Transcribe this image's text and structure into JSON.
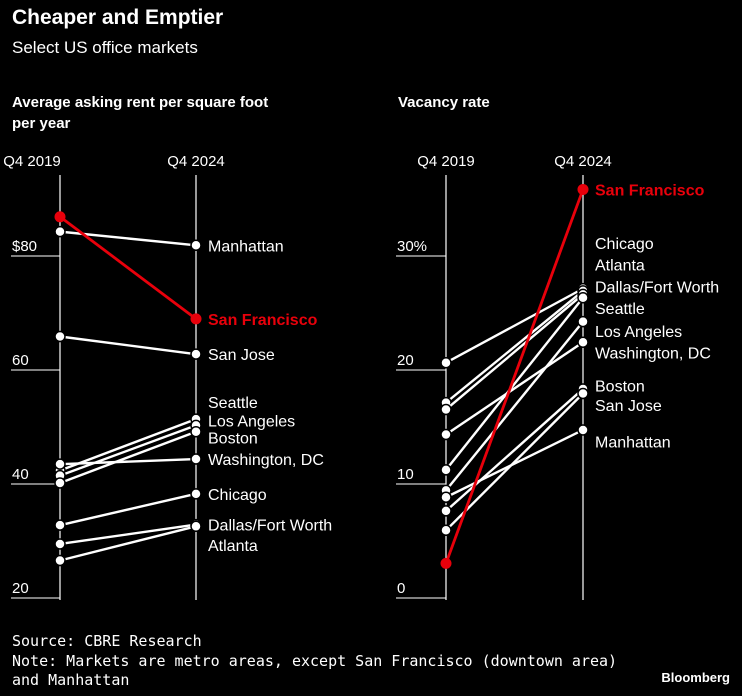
{
  "title": "Cheaper and Emptier",
  "subtitle": "Select US office markets",
  "source": "Source: CBRE Research",
  "note_line1": "Note: Markets are metro areas, except San Francisco (downtown area)",
  "note_line2": "and Manhattan",
  "brand": "Bloomberg",
  "colors": {
    "background": "#000000",
    "line": "#ffffff",
    "highlight": "#e8000b"
  },
  "chart_data": [
    {
      "type": "line",
      "title": "Average asking rent per square foot per year",
      "title_line1": "Average asking rent per square foot",
      "title_line2": "per year",
      "x": [
        "Q4 2019",
        "Q4 2024"
      ],
      "ylim": [
        20,
        88
      ],
      "yticks": [
        20,
        40,
        60,
        80
      ],
      "ytick_labels": [
        "20",
        "40",
        "60",
        "$80"
      ],
      "highlight": "San Francisco",
      "series": [
        {
          "name": "Manhattan",
          "values": [
            83.4,
            81.0
          ]
        },
        {
          "name": "San Francisco",
          "values": [
            86.0,
            68.1
          ]
        },
        {
          "name": "San Jose",
          "values": [
            65.0,
            61.9
          ]
        },
        {
          "name": "Seattle",
          "values": [
            41.5,
            50.5
          ]
        },
        {
          "name": "Los Angeles",
          "values": [
            40.6,
            49.4
          ]
        },
        {
          "name": "Boston",
          "values": [
            39.3,
            48.3
          ]
        },
        {
          "name": "Washington, DC",
          "values": [
            42.6,
            43.5
          ]
        },
        {
          "name": "Chicago",
          "values": [
            31.9,
            37.4
          ]
        },
        {
          "name": "Dallas/Fort Worth",
          "values": [
            28.6,
            32.0
          ]
        },
        {
          "name": "Atlanta",
          "values": [
            25.7,
            31.7
          ]
        }
      ],
      "labels": [
        {
          "text": "Manhattan",
          "value": 81.0,
          "highlight": false
        },
        {
          "text": "San Francisco",
          "value": 68.1,
          "highlight": true
        },
        {
          "text": "San Jose",
          "value": 61.9,
          "highlight": false
        },
        {
          "text": "Seattle",
          "value": 53.5,
          "highlight": false
        },
        {
          "text": "Los Angeles",
          "value": 50.3,
          "highlight": false
        },
        {
          "text": "Boston",
          "value": 47.3,
          "highlight": false
        },
        {
          "text": "Washington, DC",
          "value": 43.5,
          "highlight": false
        },
        {
          "text": "Chicago",
          "value": 37.4,
          "highlight": false
        },
        {
          "text": "Dallas/Fort Worth",
          "value": 32.0,
          "highlight": false
        },
        {
          "text": "Atlanta",
          "value": 28.4,
          "highlight": false
        }
      ]
    },
    {
      "type": "line",
      "title": "Vacancy rate",
      "x": [
        "Q4 2019",
        "Q4 2024"
      ],
      "ylim": [
        0,
        37
      ],
      "yticks": [
        0,
        10,
        20,
        30
      ],
      "ytick_labels": [
        "0",
        "10",
        "20",
        "30%"
      ],
      "highlight": "San Francisco",
      "series": [
        {
          "name": "San Francisco",
          "values": [
            2.6,
            35.4
          ]
        },
        {
          "name": "Chicago",
          "values": [
            20.2,
            26.7
          ]
        },
        {
          "name": "Atlanta",
          "values": [
            16.7,
            26.5
          ]
        },
        {
          "name": "Dallas/Fort Worth",
          "values": [
            16.1,
            26.2
          ]
        },
        {
          "name": "Seattle",
          "values": [
            10.8,
            25.9
          ]
        },
        {
          "name": "Los Angeles",
          "values": [
            9.0,
            23.8
          ]
        },
        {
          "name": "Washington, DC",
          "values": [
            13.9,
            22.0
          ]
        },
        {
          "name": "Boston",
          "values": [
            7.2,
            17.9
          ]
        },
        {
          "name": "San Jose",
          "values": [
            5.5,
            17.5
          ]
        },
        {
          "name": "Manhattan",
          "values": [
            8.4,
            14.3
          ]
        }
      ],
      "labels": [
        {
          "text": "San Francisco",
          "value": 35.4,
          "highlight": true
        },
        {
          "text": "Chicago",
          "value": 30.7,
          "highlight": false
        },
        {
          "text": "Atlanta",
          "value": 28.8,
          "highlight": false
        },
        {
          "text": "Dallas/Fort Worth",
          "value": 26.9,
          "highlight": false
        },
        {
          "text": "Seattle",
          "value": 25.0,
          "highlight": false
        },
        {
          "text": "Los Angeles",
          "value": 23.0,
          "highlight": false
        },
        {
          "text": "Washington, DC",
          "value": 21.1,
          "highlight": false
        },
        {
          "text": "Boston",
          "value": 18.2,
          "highlight": false
        },
        {
          "text": "San Jose",
          "value": 16.5,
          "highlight": false
        },
        {
          "text": "Manhattan",
          "value": 13.3,
          "highlight": false
        }
      ]
    }
  ]
}
